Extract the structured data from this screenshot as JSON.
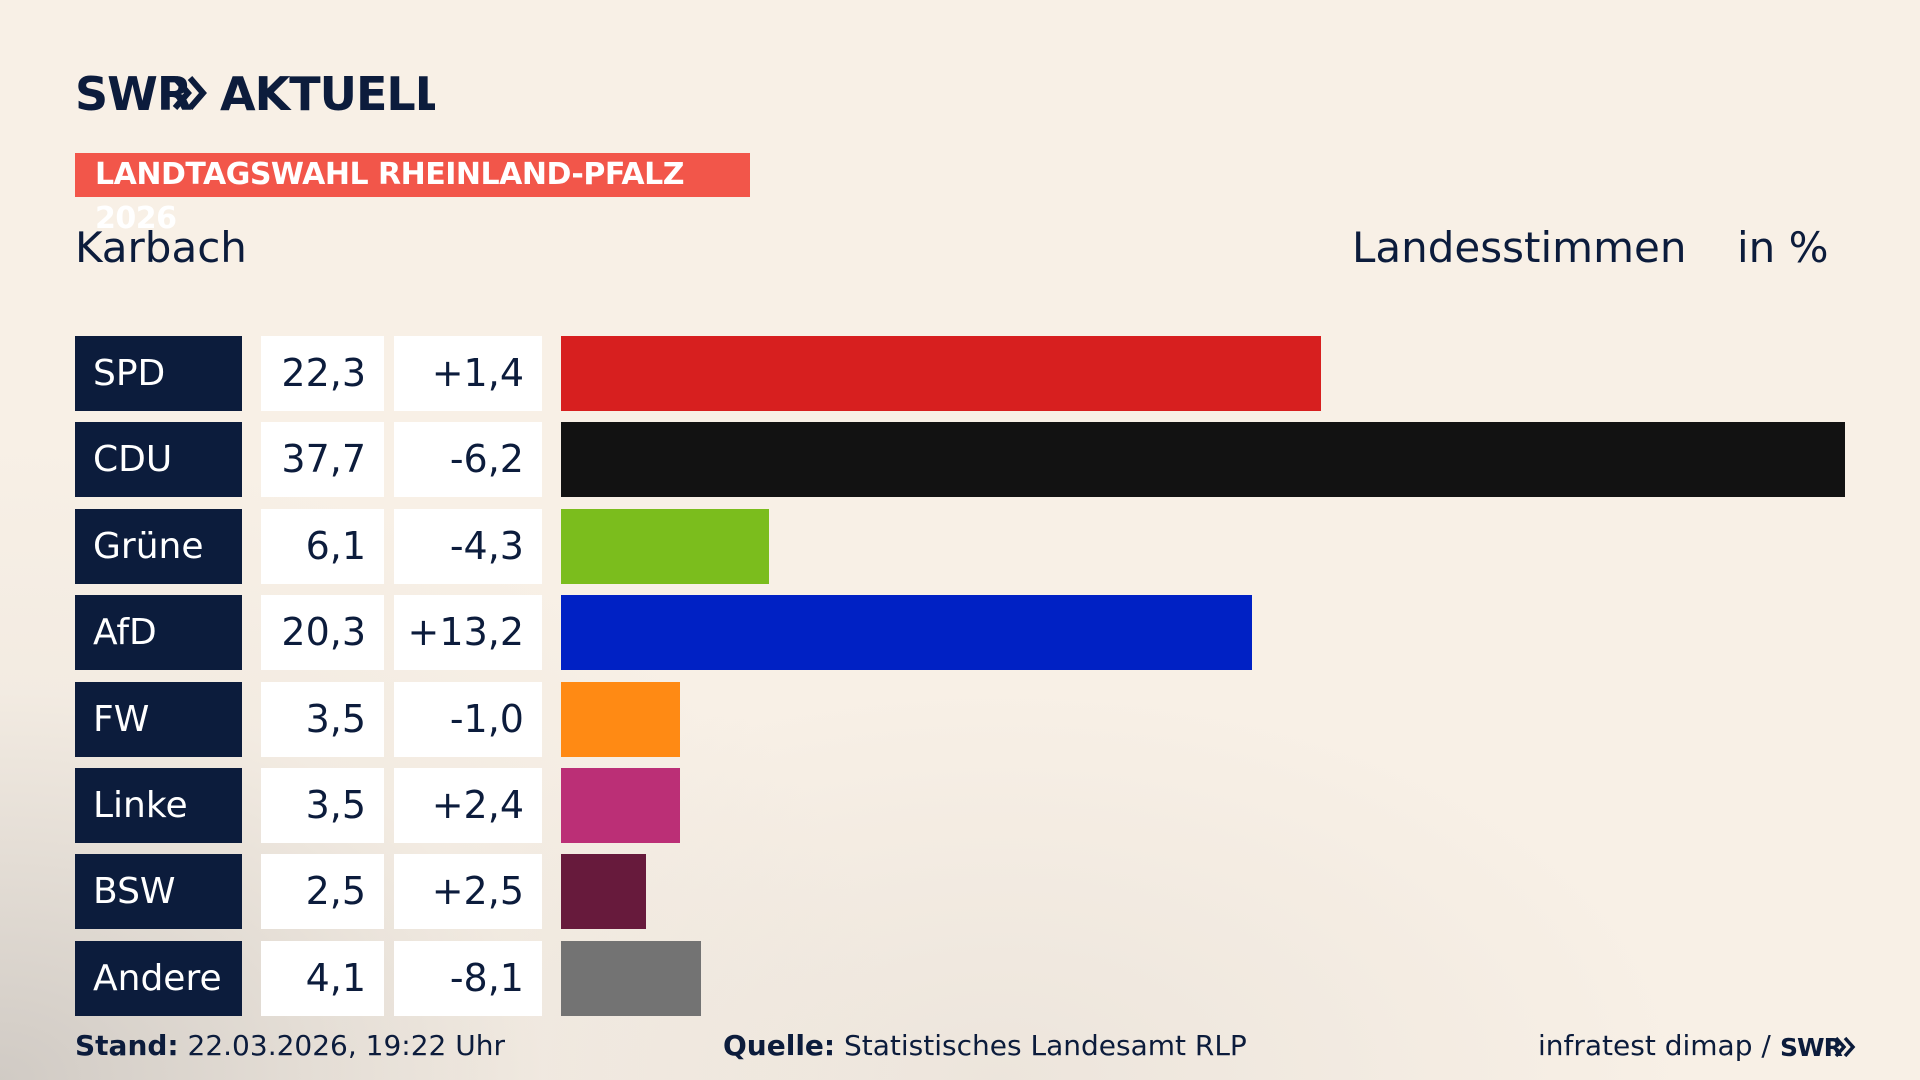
{
  "brand": {
    "logo_text": "SWR",
    "section": "AKTUELL"
  },
  "banner": "LANDTAGSWAHL RHEINLAND-PFALZ 2026",
  "header": {
    "place": "Karbach",
    "metric": "Landesstimmen",
    "unit": "in %"
  },
  "chart_data": {
    "type": "bar",
    "orientation": "horizontal",
    "title": "Karbach",
    "categories": [
      "SPD",
      "CDU",
      "Grüne",
      "AfD",
      "FW",
      "Linke",
      "BSW",
      "Andere"
    ],
    "values": [
      22.3,
      37.7,
      6.1,
      20.3,
      3.5,
      3.5,
      2.5,
      4.1
    ],
    "value_labels": [
      "22,3",
      "37,7",
      "6,1",
      "20,3",
      "3,5",
      "3,5",
      "2,5",
      "4,1"
    ],
    "change_labels": [
      "+1,4",
      "-6,2",
      "-4,3",
      "+13,2",
      "-1,0",
      "+2,4",
      "+2,5",
      "-8,1"
    ],
    "changes": [
      1.4,
      -6.2,
      -4.3,
      13.2,
      -1.0,
      2.4,
      2.5,
      -8.1
    ],
    "colors": [
      "#d71f1f",
      "#121212",
      "#7bbd1d",
      "#0021c4",
      "#ff8a14",
      "#bb2f76",
      "#671a3c",
      "#737373"
    ],
    "xlim": [
      0,
      37.7
    ],
    "grid": false
  },
  "footer": {
    "stand_label": "Stand:",
    "stand_value": "22.03.2026, 19:22 Uhr",
    "quelle_label": "Quelle:",
    "quelle_value": "Statistisches Landesamt RLP",
    "credit": "infratest dimap /",
    "credit_logo": "SWR"
  }
}
